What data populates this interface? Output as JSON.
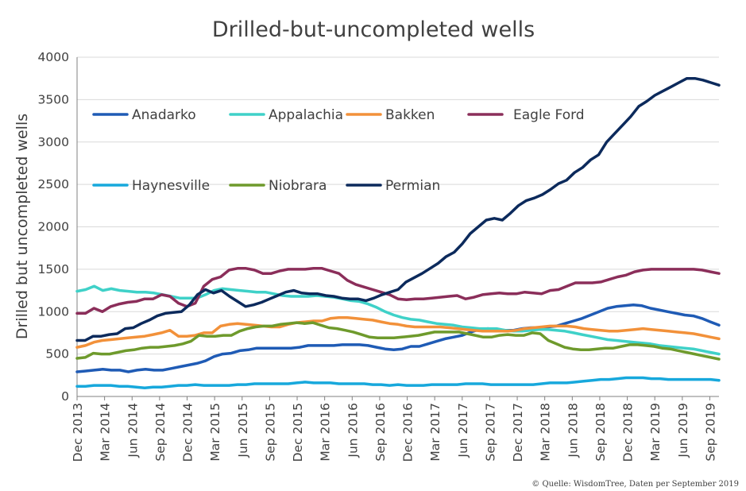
{
  "chart_data": {
    "type": "line",
    "title": "Drilled-but-uncompleted wells",
    "ylabel": "Drilled but uncompleted wells",
    "xlabel": "",
    "ylim": [
      0,
      4000
    ],
    "yticks": [
      0,
      500,
      1000,
      1500,
      2000,
      2500,
      3000,
      3500,
      4000
    ],
    "grid": "horizontal",
    "legend": "top-left, inside plot",
    "source": "© Quelle: WisdomTree, Daten per September 2019",
    "xticks": [
      "Dec 2013",
      "Mar 2014",
      "Jun 2014",
      "Sep 2014",
      "Dec 2014",
      "Mar 2015",
      "Jun 2015",
      "Sep 2015",
      "Dec 2015",
      "Mar 2016",
      "Jun 2016",
      "Sep 2016",
      "Dec 2016",
      "Mar 2017",
      "Jun 2017",
      "Sep 2017",
      "Dec 2017",
      "Mar 2018",
      "Jun 2018",
      "Sep 2018",
      "Dec 2018",
      "Mar 2019",
      "Jun 2019",
      "Sep 2019"
    ],
    "x_start": "Dec 2013",
    "x_step": "month",
    "series": [
      {
        "name": "Anadarko",
        "color": "#1f5bb5",
        "values": [
          290,
          300,
          310,
          320,
          310,
          310,
          290,
          310,
          320,
          310,
          310,
          330,
          350,
          370,
          390,
          420,
          470,
          500,
          510,
          540,
          550,
          570,
          570,
          570,
          570,
          570,
          580,
          600,
          600,
          600,
          600,
          610,
          610,
          610,
          600,
          580,
          560,
          550,
          560,
          590,
          590,
          620,
          650,
          680,
          700,
          720,
          760,
          790,
          800,
          790,
          780,
          780,
          800,
          810,
          810,
          820,
          830,
          860,
          890,
          920,
          960,
          1000,
          1040,
          1060,
          1070,
          1080,
          1070,
          1040,
          1020,
          1000,
          980,
          960,
          950,
          920,
          880,
          840
        ]
      },
      {
        "name": "Appalachia",
        "color": "#3fd1c8",
        "values": [
          1240,
          1260,
          1300,
          1250,
          1270,
          1250,
          1240,
          1230,
          1230,
          1220,
          1200,
          1180,
          1160,
          1160,
          1160,
          1200,
          1250,
          1270,
          1260,
          1250,
          1240,
          1230,
          1230,
          1210,
          1190,
          1180,
          1180,
          1180,
          1190,
          1180,
          1170,
          1150,
          1130,
          1120,
          1090,
          1050,
          1000,
          960,
          930,
          910,
          900,
          880,
          860,
          850,
          840,
          820,
          810,
          800,
          800,
          800,
          780,
          770,
          770,
          780,
          790,
          790,
          780,
          770,
          750,
          730,
          710,
          690,
          670,
          660,
          650,
          640,
          630,
          620,
          600,
          590,
          580,
          570,
          560,
          540,
          520,
          500
        ]
      },
      {
        "name": "Bakken",
        "color": "#f2913a",
        "values": [
          580,
          600,
          640,
          660,
          670,
          680,
          690,
          700,
          710,
          730,
          750,
          780,
          710,
          710,
          720,
          750,
          750,
          830,
          850,
          860,
          850,
          840,
          830,
          820,
          820,
          850,
          870,
          880,
          890,
          890,
          920,
          930,
          930,
          920,
          910,
          900,
          880,
          860,
          850,
          830,
          820,
          820,
          820,
          820,
          810,
          800,
          790,
          780,
          770,
          770,
          770,
          770,
          780,
          800,
          810,
          820,
          830,
          830,
          830,
          820,
          800,
          790,
          780,
          770,
          770,
          780,
          790,
          800,
          790,
          780,
          770,
          760,
          750,
          740,
          720,
          700,
          680
        ]
      },
      {
        "name": "Eagle Ford",
        "color": "#8b2e5a",
        "values": [
          980,
          980,
          1040,
          1000,
          1060,
          1090,
          1110,
          1120,
          1150,
          1150,
          1200,
          1180,
          1100,
          1060,
          1100,
          1300,
          1380,
          1410,
          1490,
          1510,
          1510,
          1490,
          1450,
          1450,
          1480,
          1500,
          1500,
          1500,
          1510,
          1510,
          1480,
          1450,
          1370,
          1320,
          1290,
          1260,
          1230,
          1200,
          1150,
          1140,
          1150,
          1150,
          1160,
          1170,
          1180,
          1190,
          1150,
          1170,
          1200,
          1210,
          1220,
          1210,
          1210,
          1230,
          1220,
          1210,
          1250,
          1260,
          1300,
          1340,
          1340,
          1340,
          1350,
          1380,
          1410,
          1430,
          1470,
          1490,
          1500,
          1500,
          1500,
          1500,
          1500,
          1500,
          1490,
          1470,
          1450
        ]
      },
      {
        "name": "Haynesville",
        "color": "#17a8dc",
        "values": [
          120,
          120,
          130,
          130,
          130,
          120,
          120,
          110,
          100,
          110,
          110,
          120,
          130,
          130,
          140,
          130,
          130,
          130,
          130,
          140,
          140,
          150,
          150,
          150,
          150,
          150,
          160,
          170,
          160,
          160,
          160,
          150,
          150,
          150,
          150,
          140,
          140,
          130,
          140,
          130,
          130,
          130,
          140,
          140,
          140,
          140,
          150,
          150,
          150,
          140,
          140,
          140,
          140,
          140,
          140,
          150,
          160,
          160,
          160,
          170,
          180,
          190,
          200,
          200,
          210,
          220,
          220,
          220,
          210,
          210,
          200,
          200,
          200,
          200,
          200,
          200,
          190
        ]
      },
      {
        "name": "Niobrara",
        "color": "#6e9a2c",
        "values": [
          450,
          460,
          510,
          500,
          500,
          520,
          540,
          550,
          570,
          580,
          580,
          590,
          600,
          620,
          650,
          720,
          710,
          710,
          720,
          720,
          770,
          800,
          820,
          830,
          830,
          850,
          860,
          870,
          860,
          870,
          840,
          810,
          800,
          780,
          760,
          730,
          700,
          690,
          690,
          690,
          700,
          710,
          720,
          740,
          760,
          760,
          760,
          760,
          740,
          720,
          700,
          700,
          720,
          730,
          720,
          720,
          750,
          740,
          660,
          620,
          580,
          560,
          550,
          550,
          560,
          570,
          570,
          590,
          610,
          610,
          600,
          590,
          570,
          560,
          540,
          520,
          500,
          480,
          460,
          440
        ]
      },
      {
        "name": "Permian",
        "color": "#0c2a5c",
        "values": [
          660,
          660,
          710,
          710,
          730,
          740,
          800,
          810,
          860,
          900,
          950,
          980,
          990,
          1000,
          1080,
          1200,
          1260,
          1220,
          1250,
          1180,
          1120,
          1060,
          1080,
          1110,
          1150,
          1190,
          1230,
          1250,
          1220,
          1210,
          1210,
          1190,
          1180,
          1160,
          1150,
          1150,
          1130,
          1160,
          1200,
          1230,
          1260,
          1350,
          1400,
          1450,
          1510,
          1570,
          1650,
          1700,
          1800,
          1920,
          2000,
          2080,
          2100,
          2080,
          2160,
          2250,
          2310,
          2340,
          2380,
          2440,
          2510,
          2550,
          2640,
          2700,
          2790,
          2850,
          3000,
          3100,
          3200,
          3300,
          3420,
          3480,
          3550,
          3600,
          3650,
          3700,
          3750,
          3750,
          3730,
          3700,
          3670
        ]
      }
    ]
  }
}
